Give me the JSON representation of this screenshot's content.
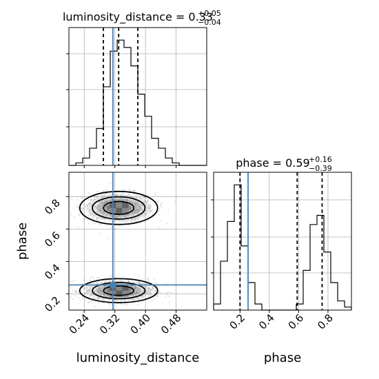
{
  "chart_data": {
    "type": "corner",
    "parameters": [
      "luminosity_distance",
      "phase"
    ],
    "truths": {
      "luminosity_distance": 0.315,
      "phase": 0.255
    },
    "panels": [
      {
        "type": "histogram",
        "param": "luminosity_distance",
        "title_prefix": "luminosity_distance = 0.33",
        "title_sup": "+0.05",
        "title_sub": "−0.04",
        "xlim": [
          0.2,
          0.56
        ],
        "quantiles": [
          0.29,
          0.33,
          0.38
        ],
        "bin_edges": [
          0.2,
          0.218,
          0.236,
          0.254,
          0.272,
          0.29,
          0.308,
          0.326,
          0.344,
          0.362,
          0.38,
          0.398,
          0.416,
          0.434,
          0.452,
          0.47,
          0.488,
          0.506,
          0.524,
          0.542,
          0.56
        ],
        "counts": [
          0,
          2,
          6,
          14,
          30,
          64,
          93,
          102,
          96,
          81,
          58,
          40,
          22,
          14,
          6,
          2,
          0,
          0,
          0,
          0
        ]
      },
      {
        "type": "scatter2d",
        "x_param": "luminosity_distance",
        "y_param": "phase",
        "xlim": [
          0.2,
          0.56
        ],
        "ylim": [
          0.1,
          0.95
        ],
        "xticks": [
          "0.24",
          "0.32",
          "0.40",
          "0.48"
        ],
        "yticks": [
          "0.2",
          "0.4",
          "0.6",
          "0.8"
        ],
        "xticks_v": [
          0.24,
          0.32,
          0.4,
          0.48
        ],
        "yticks_v": [
          0.2,
          0.4,
          0.6,
          0.8
        ],
        "modes": [
          {
            "cx": 0.33,
            "cy": 0.73,
            "sx": 0.055,
            "sy": 0.055
          },
          {
            "cx": 0.33,
            "cy": 0.22,
            "sx": 0.055,
            "sy": 0.04
          }
        ],
        "xlabel": "luminosity_distance",
        "ylabel": "phase"
      },
      {
        "type": "histogram",
        "param": "phase",
        "title_prefix": "phase = 0.59",
        "title_sup": "+0.16",
        "title_sub": "−0.39",
        "xlim": [
          0.02,
          0.96
        ],
        "quantiles": [
          0.2,
          0.59,
          0.76
        ],
        "bin_edges": [
          0.02,
          0.067,
          0.114,
          0.161,
          0.208,
          0.255,
          0.302,
          0.349,
          0.396,
          0.443,
          0.49,
          0.537,
          0.584,
          0.631,
          0.678,
          0.725,
          0.772,
          0.819,
          0.866,
          0.913,
          0.96
        ],
        "counts": [
          4,
          32,
          58,
          82,
          42,
          18,
          4,
          0,
          0,
          0,
          0,
          0,
          4,
          26,
          56,
          62,
          38,
          18,
          6,
          2
        ],
        "xticks": [
          "0.2",
          "0.4",
          "0.6",
          "0.8"
        ],
        "xticks_v": [
          0.2,
          0.4,
          0.6,
          0.8
        ],
        "xlabel": "phase"
      }
    ],
    "colors": {
      "truth": "#4682b4",
      "hist": "#000000",
      "quantile": "#000000",
      "grid": "#b0b0b0"
    }
  }
}
